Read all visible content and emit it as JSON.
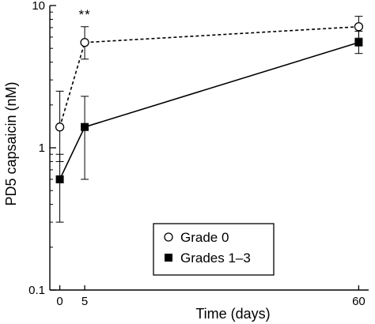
{
  "chart_data": {
    "type": "line",
    "title": "",
    "xlabel": "Time (days)",
    "ylabel": "PD5 capsaicin (nM)",
    "x_ticks": [
      0,
      5,
      60
    ],
    "x_tick_labels": [
      "0",
      "5",
      "60"
    ],
    "xlim": [
      -2,
      62
    ],
    "y_scale": "log",
    "ylim": [
      0.1,
      10
    ],
    "y_ticks": [
      0.1,
      1,
      10
    ],
    "y_tick_labels": [
      "0.1",
      "1",
      "10"
    ],
    "grid": false,
    "legend_position": "lower-right",
    "annotation": "**",
    "series": [
      {
        "name": "Grade 0",
        "marker": "open-circle",
        "line_style": "dashed",
        "x": [
          0,
          5,
          60
        ],
        "y": [
          1.4,
          5.5,
          7.1
        ],
        "error_low": [
          0.8,
          4.2,
          5.9
        ],
        "error_high": [
          2.5,
          7.1,
          8.4
        ]
      },
      {
        "name": "Grades 1–3",
        "marker": "filled-square",
        "line_style": "solid",
        "x": [
          0,
          5,
          60
        ],
        "y": [
          0.6,
          1.4,
          5.5
        ],
        "error_low": [
          0.3,
          0.6,
          4.6
        ],
        "error_high": [
          0.9,
          2.3,
          6.6
        ]
      }
    ]
  }
}
